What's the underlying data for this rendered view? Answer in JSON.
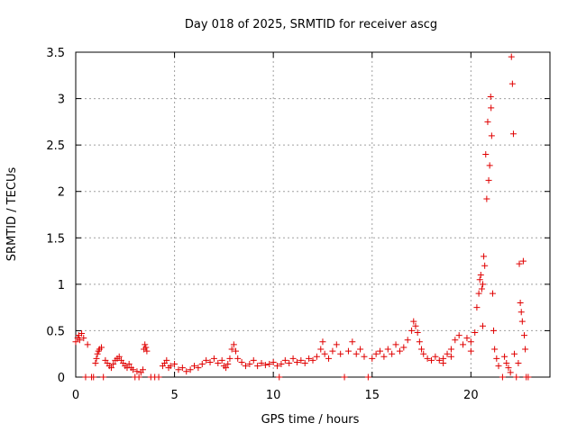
{
  "chart_data": {
    "type": "scatter",
    "title": "Day 018 of 2025, SRMTID for receiver ascg",
    "xlabel": "GPS time / hours",
    "ylabel": "SRMTID / TECUs",
    "xlim": [
      0,
      24
    ],
    "ylim": [
      0,
      3.5
    ],
    "xticks": [
      0,
      5,
      10,
      15,
      20
    ],
    "xtick_labels": [
      "0",
      "5",
      "10",
      "15",
      "20"
    ],
    "yticks": [
      0,
      0.5,
      1,
      1.5,
      2,
      2.5,
      3,
      3.5
    ],
    "ytick_labels": [
      "0",
      "0.5",
      "1",
      "1.5",
      "2",
      "2.5",
      "3",
      "3.5"
    ],
    "grid": true,
    "marker": "+",
    "color": "#e00000",
    "series": [
      {
        "name": "SRMTID",
        "points": [
          [
            0.0,
            0.38
          ],
          [
            0.1,
            0.42
          ],
          [
            0.15,
            0.45
          ],
          [
            0.2,
            0.4
          ],
          [
            0.3,
            0.47
          ],
          [
            0.4,
            0.42
          ],
          [
            0.5,
            0.0
          ],
          [
            0.6,
            0.35
          ],
          [
            0.8,
            0.0
          ],
          [
            0.9,
            0.0
          ],
          [
            1.0,
            0.15
          ],
          [
            1.05,
            0.2
          ],
          [
            1.1,
            0.25
          ],
          [
            1.15,
            0.28
          ],
          [
            1.2,
            0.3
          ],
          [
            1.3,
            0.32
          ],
          [
            1.4,
            0.0
          ],
          [
            1.5,
            0.18
          ],
          [
            1.6,
            0.15
          ],
          [
            1.7,
            0.12
          ],
          [
            1.8,
            0.1
          ],
          [
            1.9,
            0.14
          ],
          [
            2.0,
            0.18
          ],
          [
            2.1,
            0.2
          ],
          [
            2.2,
            0.22
          ],
          [
            2.3,
            0.18
          ],
          [
            2.4,
            0.15
          ],
          [
            2.5,
            0.12
          ],
          [
            2.6,
            0.1
          ],
          [
            2.7,
            0.14
          ],
          [
            2.8,
            0.1
          ],
          [
            2.9,
            0.08
          ],
          [
            3.0,
            0.0
          ],
          [
            3.1,
            0.06
          ],
          [
            3.2,
            0.0
          ],
          [
            3.3,
            0.05
          ],
          [
            3.4,
            0.08
          ],
          [
            3.45,
            0.3
          ],
          [
            3.5,
            0.35
          ],
          [
            3.55,
            0.32
          ],
          [
            3.6,
            0.28
          ],
          [
            3.8,
            0.0
          ],
          [
            4.0,
            0.0
          ],
          [
            4.2,
            0.0
          ],
          [
            4.4,
            0.12
          ],
          [
            4.5,
            0.15
          ],
          [
            4.6,
            0.18
          ],
          [
            4.7,
            0.1
          ],
          [
            4.8,
            0.12
          ],
          [
            5.0,
            0.14
          ],
          [
            5.2,
            0.08
          ],
          [
            5.4,
            0.1
          ],
          [
            5.6,
            0.06
          ],
          [
            5.8,
            0.08
          ],
          [
            6.0,
            0.12
          ],
          [
            6.2,
            0.1
          ],
          [
            6.4,
            0.14
          ],
          [
            6.6,
            0.18
          ],
          [
            6.8,
            0.16
          ],
          [
            7.0,
            0.2
          ],
          [
            7.2,
            0.15
          ],
          [
            7.4,
            0.18
          ],
          [
            7.5,
            0.12
          ],
          [
            7.6,
            0.1
          ],
          [
            7.7,
            0.14
          ],
          [
            7.8,
            0.2
          ],
          [
            7.9,
            0.3
          ],
          [
            8.0,
            0.35
          ],
          [
            8.1,
            0.28
          ],
          [
            8.2,
            0.2
          ],
          [
            8.4,
            0.16
          ],
          [
            8.6,
            0.12
          ],
          [
            8.8,
            0.14
          ],
          [
            9.0,
            0.18
          ],
          [
            9.2,
            0.12
          ],
          [
            9.4,
            0.15
          ],
          [
            9.6,
            0.13
          ],
          [
            9.8,
            0.14
          ],
          [
            10.0,
            0.16
          ],
          [
            10.2,
            0.12
          ],
          [
            10.3,
            0.0
          ],
          [
            10.4,
            0.14
          ],
          [
            10.6,
            0.18
          ],
          [
            10.8,
            0.15
          ],
          [
            11.0,
            0.2
          ],
          [
            11.2,
            0.16
          ],
          [
            11.4,
            0.18
          ],
          [
            11.6,
            0.15
          ],
          [
            11.8,
            0.2
          ],
          [
            12.0,
            0.18
          ],
          [
            12.2,
            0.22
          ],
          [
            12.4,
            0.3
          ],
          [
            12.5,
            0.38
          ],
          [
            12.6,
            0.25
          ],
          [
            12.8,
            0.2
          ],
          [
            13.0,
            0.28
          ],
          [
            13.2,
            0.35
          ],
          [
            13.4,
            0.25
          ],
          [
            13.6,
            0.0
          ],
          [
            13.8,
            0.28
          ],
          [
            14.0,
            0.38
          ],
          [
            14.2,
            0.25
          ],
          [
            14.4,
            0.3
          ],
          [
            14.6,
            0.22
          ],
          [
            14.8,
            0.0
          ],
          [
            15.0,
            0.2
          ],
          [
            15.2,
            0.25
          ],
          [
            15.4,
            0.28
          ],
          [
            15.6,
            0.22
          ],
          [
            15.8,
            0.3
          ],
          [
            16.0,
            0.25
          ],
          [
            16.2,
            0.35
          ],
          [
            16.4,
            0.28
          ],
          [
            16.6,
            0.32
          ],
          [
            16.8,
            0.4
          ],
          [
            17.0,
            0.5
          ],
          [
            17.1,
            0.6
          ],
          [
            17.2,
            0.55
          ],
          [
            17.3,
            0.48
          ],
          [
            17.4,
            0.38
          ],
          [
            17.5,
            0.3
          ],
          [
            17.6,
            0.25
          ],
          [
            17.8,
            0.2
          ],
          [
            18.0,
            0.18
          ],
          [
            18.2,
            0.22
          ],
          [
            18.4,
            0.18
          ],
          [
            18.6,
            0.2
          ],
          [
            18.8,
            0.25
          ],
          [
            19.0,
            0.3
          ],
          [
            19.2,
            0.4
          ],
          [
            19.4,
            0.45
          ],
          [
            19.6,
            0.35
          ],
          [
            19.8,
            0.42
          ],
          [
            20.0,
            0.38
          ],
          [
            20.2,
            0.48
          ],
          [
            20.3,
            0.75
          ],
          [
            20.4,
            0.9
          ],
          [
            20.45,
            1.05
          ],
          [
            20.5,
            1.1
          ],
          [
            20.55,
            0.95
          ],
          [
            20.6,
            0.55
          ],
          [
            20.65,
            1.3
          ],
          [
            20.7,
            1.2
          ],
          [
            20.75,
            2.4
          ],
          [
            20.8,
            1.92
          ],
          [
            20.85,
            2.75
          ],
          [
            20.9,
            2.12
          ],
          [
            20.95,
            2.28
          ],
          [
            21.0,
            3.02
          ],
          [
            21.02,
            2.9
          ],
          [
            21.05,
            2.6
          ],
          [
            21.1,
            0.9
          ],
          [
            21.15,
            0.5
          ],
          [
            21.2,
            0.3
          ],
          [
            21.3,
            0.2
          ],
          [
            21.4,
            0.12
          ],
          [
            21.6,
            0.0
          ],
          [
            21.7,
            0.22
          ],
          [
            21.8,
            0.15
          ],
          [
            21.9,
            0.1
          ],
          [
            22.0,
            0.05
          ],
          [
            22.05,
            3.45
          ],
          [
            22.1,
            3.16
          ],
          [
            22.15,
            2.62
          ],
          [
            22.2,
            0.25
          ],
          [
            22.3,
            0.0
          ],
          [
            22.4,
            0.15
          ],
          [
            22.45,
            1.22
          ],
          [
            22.5,
            0.8
          ],
          [
            22.55,
            0.7
          ],
          [
            22.6,
            0.6
          ],
          [
            22.65,
            1.25
          ],
          [
            22.7,
            0.45
          ],
          [
            22.75,
            0.3
          ],
          [
            22.8,
            0.0
          ],
          [
            22.9,
            0.0
          ],
          [
            18.6,
            0.15
          ],
          [
            19.0,
            0.22
          ],
          [
            20.0,
            0.28
          ],
          [
            20.6,
            1.0
          ]
        ]
      }
    ]
  }
}
